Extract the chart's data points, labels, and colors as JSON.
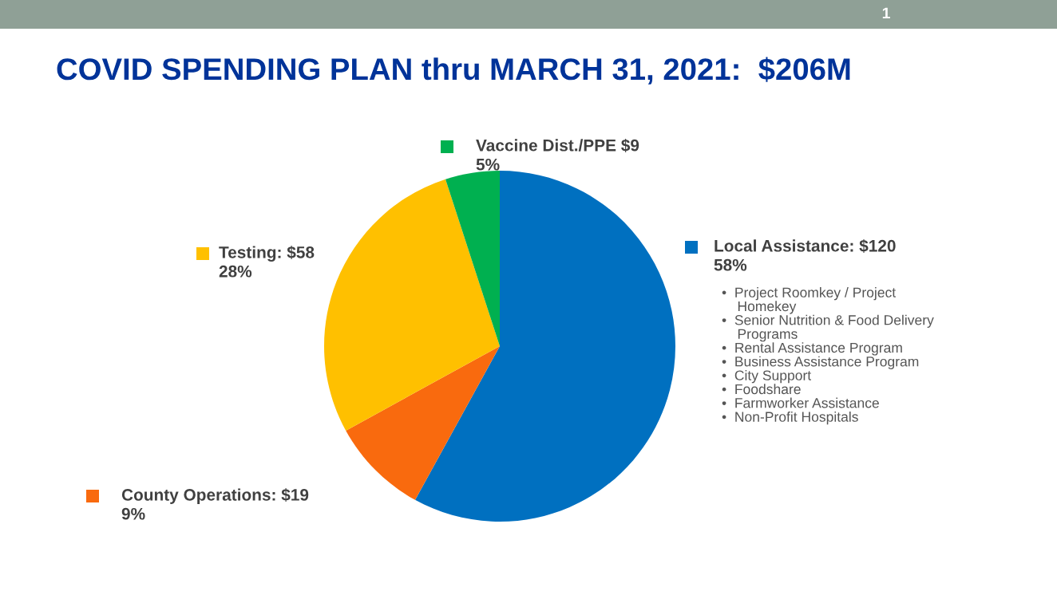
{
  "chart_data": {
    "type": "pie",
    "title": "COVID SPENDING PLAN thru MARCH 31, 2021:  $206M",
    "categories": [
      "Local Assistance: $120",
      "County Operations: $19",
      "Testing: $58",
      "Vaccine Dist./PPE $9"
    ],
    "values": [
      58,
      9,
      28,
      5
    ],
    "colors": [
      "#0070c0",
      "#f96a0e",
      "#ffc000",
      "#00b050"
    ],
    "value_labels": [
      "58%",
      "9%",
      "28%",
      "5%"
    ],
    "legend": "right",
    "annotations": [
      "1",
      "•  Project Roomkey / Project\n    Homekey\n•  Senior Nutrition & Food Delivery\n    Programs\n•  Rental Assistance Program\n•  Business Assistance Program\n•  City Support\n•  Foodshare\n•  Farmworker Assistance\n•  Non-Profit Hospitals"
    ]
  }
}
